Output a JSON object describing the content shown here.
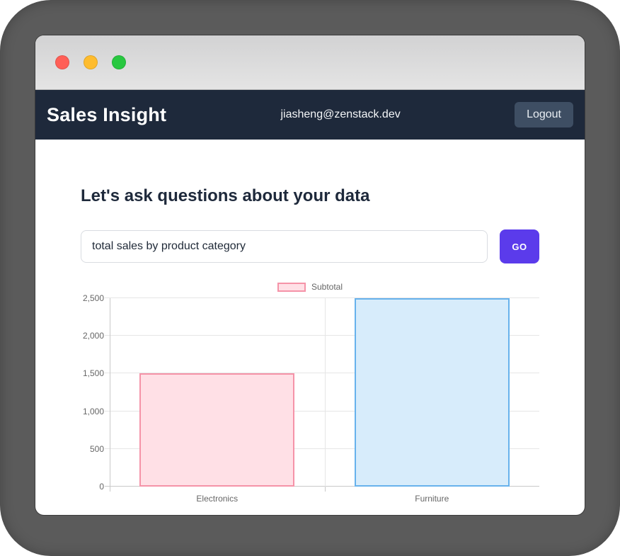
{
  "window": {
    "titlebar": {
      "buttons": [
        {
          "name": "close",
          "color": "#ff5f57"
        },
        {
          "name": "minimize",
          "color": "#febc2e"
        },
        {
          "name": "zoom",
          "color": "#28c840"
        }
      ]
    },
    "navbar": {
      "brand": "Sales Insight",
      "user_email": "jiasheng@zenstack.dev",
      "logout_label": "Logout",
      "bg_color": "#1e293b",
      "logout_bg_color": "#3e4e63"
    },
    "main": {
      "heading": "Let's ask questions about your data",
      "query_value": "total sales by product category",
      "go_label": "GO",
      "go_bg_color": "#5b3beb"
    }
  },
  "chart_data": {
    "type": "bar",
    "title": "",
    "categories": [
      "Electronics",
      "Furniture"
    ],
    "series": [
      {
        "name": "Subtotal",
        "values": [
          1500,
          2500
        ]
      }
    ],
    "ylim": [
      0,
      2500
    ],
    "ytick_step": 500,
    "ytick_labels": [
      "0",
      "500",
      "1,000",
      "1,500",
      "2,000",
      "2,500"
    ],
    "legend_position": "top",
    "grid": true,
    "bar_styles": [
      {
        "fill": "#ffe0e6",
        "border": "#f593a8"
      },
      {
        "fill": "#d7ecfb",
        "border": "#67b2ec"
      }
    ],
    "legend_swatch": {
      "fill": "#ffe0e6",
      "border": "#f593a8"
    },
    "grid_color": "#e6e6e6",
    "axis_color": "#c9c9c9",
    "tick_label_color": "#666666"
  },
  "frame_color": "#5b5b5b"
}
